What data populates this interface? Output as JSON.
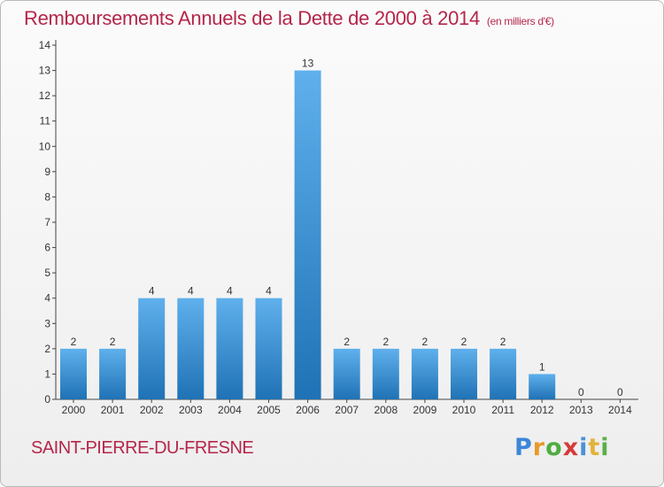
{
  "header": {
    "title": "Remboursements Annuels de la Dette de 2000 à 2014",
    "unit": "(en milliers d'€)"
  },
  "footer": {
    "commune": "SAINT-PIERRE-DU-FRESNE",
    "logo": "Proxiti"
  },
  "colors": {
    "title": "#b5264a",
    "bar_top": "#5fb0ec",
    "bar_bottom": "#1f72b5"
  },
  "chart_data": {
    "type": "bar",
    "title": "Remboursements Annuels de la Dette de 2000 à 2014",
    "subtitle": "(en milliers d'€)",
    "categories": [
      "2000",
      "2001",
      "2002",
      "2003",
      "2004",
      "2005",
      "2006",
      "2007",
      "2008",
      "2009",
      "2010",
      "2011",
      "2012",
      "2013",
      "2014"
    ],
    "values": [
      2,
      2,
      4,
      4,
      4,
      4,
      13,
      2,
      2,
      2,
      2,
      2,
      1,
      0,
      0
    ],
    "ylim": [
      0,
      14
    ],
    "yticks": [
      0,
      1,
      2,
      3,
      4,
      5,
      6,
      7,
      8,
      9,
      10,
      11,
      12,
      13,
      14
    ],
    "xlabel": "",
    "ylabel": "",
    "grid": false,
    "data_labels": true
  }
}
